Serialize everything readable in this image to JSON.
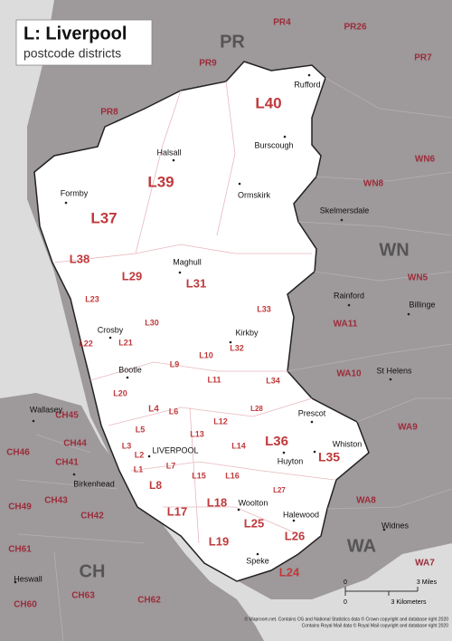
{
  "header": {
    "title": "L: Liverpool",
    "subtitle": "postcode districts"
  },
  "areas": [
    "PR",
    "WN",
    "WA",
    "CH"
  ],
  "neighbor_districts": [
    "PR4",
    "PR26",
    "PR9",
    "PR7",
    "PR8",
    "WN6",
    "WN8",
    "WN5",
    "WA11",
    "WA10",
    "WA9",
    "WA8",
    "WA7",
    "CH45",
    "CH44",
    "CH46",
    "CH41",
    "CH49",
    "CH43",
    "CH42",
    "CH61",
    "CH60",
    "CH63",
    "CH62"
  ],
  "l_districts": [
    "L40",
    "L39",
    "L37",
    "L38",
    "L29",
    "L31",
    "L23",
    "L30",
    "L33",
    "L22",
    "L21",
    "L32",
    "L9",
    "L10",
    "L20",
    "L11",
    "L34",
    "L4",
    "L28",
    "L5",
    "L6",
    "L13",
    "L12",
    "L36",
    "L3",
    "L2",
    "L14",
    "L1",
    "L7",
    "L35",
    "L8",
    "L15",
    "L16",
    "L27",
    "L17",
    "L18",
    "L25",
    "L26",
    "L19",
    "L24"
  ],
  "places": [
    "Rufford",
    "Burscough",
    "Halsall",
    "Ormskirk",
    "Formby",
    "Skelmersdale",
    "Maghull",
    "Rainford",
    "Billinge",
    "Crosby",
    "Kirkby",
    "Bootle",
    "St Helens",
    "Prescot",
    "Whiston",
    "Huyton",
    "Wallasey",
    "LIVERPOOL",
    "Birkenhead",
    "Woolton",
    "Halewood",
    "Widnes",
    "Heswall",
    "Speke"
  ],
  "scale": {
    "miles_start": "0",
    "miles_end": "3 Miles",
    "km_start": "0",
    "km_end": "3 Kilometers"
  },
  "credits": [
    "© Maproom.net. Contains OS and National Statistics data © Crown copyright and database right 2020",
    "Contains Royal Mail data © Royal Mail copyright and database right 2020"
  ]
}
